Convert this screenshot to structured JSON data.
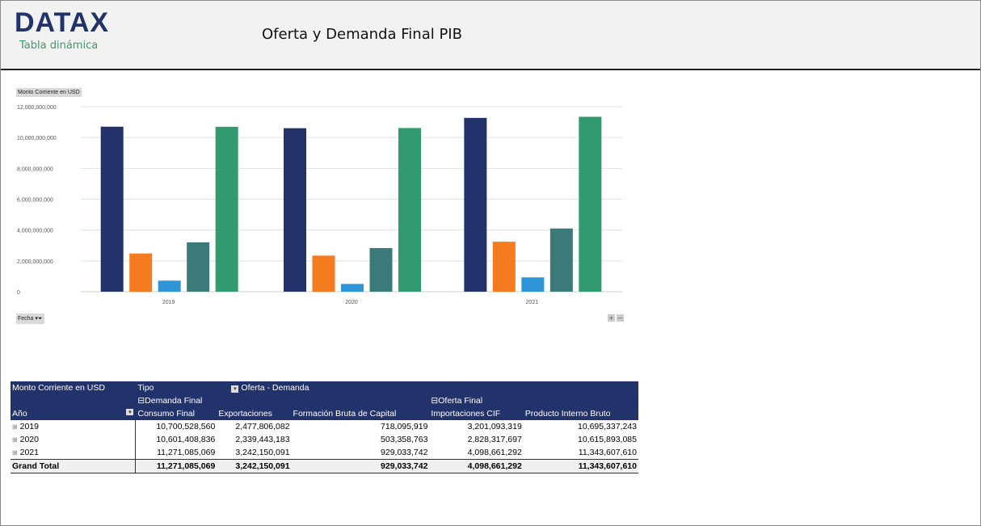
{
  "header": {
    "logo": "DATAX",
    "subtitle": "Tabla dinámica",
    "title": "Oferta y Demanda Final PIB"
  },
  "chart_data": {
    "type": "bar",
    "ylabel": "Monto Corriente en USD",
    "xfilter": "Fecha",
    "categories": [
      "2019",
      "2020",
      "2021"
    ],
    "ylim": [
      0,
      12000000000
    ],
    "yticks": [
      0,
      2000000000,
      4000000000,
      6000000000,
      8000000000,
      10000000000,
      12000000000
    ],
    "ytick_labels": [
      "0",
      "2,000,000,000",
      "4,000,000,000",
      "6,000,000,000",
      "8,000,000,000",
      "10,000,000,000",
      "12,000,000,000"
    ],
    "series": [
      {
        "name": "Consumo Final",
        "color": "#22336b",
        "values": [
          10700528560,
          10601408836,
          11271085069
        ]
      },
      {
        "name": "Exportaciones",
        "color": "#f47b20",
        "values": [
          2477806082,
          2339443183,
          3242150091
        ]
      },
      {
        "name": "Formación Bruta de Capital",
        "color": "#2e96d6",
        "values": [
          718095919,
          503358763,
          929033742
        ]
      },
      {
        "name": "Importaciones CIF",
        "color": "#3a7a78",
        "values": [
          3201093319,
          2828317697,
          4098661292
        ]
      },
      {
        "name": "Producto Interno Bruto",
        "color": "#329a6f",
        "values": [
          10695337243,
          10615893085,
          11343607610
        ]
      }
    ]
  },
  "pivot": {
    "measure": "Monto Corriente en USD",
    "tipo": "Tipo",
    "filter": "Oferta - Demanda",
    "group1": "Demanda Final",
    "group2": "Oferta Final",
    "row_header": "Año",
    "columns": [
      "Consumo Final",
      "Exportaciones",
      "Formación Bruta de Capital",
      "Importaciones CIF",
      "Producto Interno Bruto"
    ],
    "rows": [
      {
        "year": "2019",
        "values": [
          "10,700,528,560",
          "2,477,806,082",
          "718,095,919",
          "3,201,093,319",
          "10,695,337,243"
        ]
      },
      {
        "year": "2020",
        "values": [
          "10,601,408,836",
          "2,339,443,183",
          "503,358,763",
          "2,828,317,697",
          "10,615,893,085"
        ]
      },
      {
        "year": "2021",
        "values": [
          "11,271,085,069",
          "3,242,150,091",
          "929,033,742",
          "4,098,661,292",
          "11,343,607,610"
        ]
      }
    ],
    "total_label": "Grand Total",
    "totals": [
      "11,271,085,069",
      "3,242,150,091",
      "929,033,742",
      "4,098,661,292",
      "11,343,607,610"
    ]
  }
}
